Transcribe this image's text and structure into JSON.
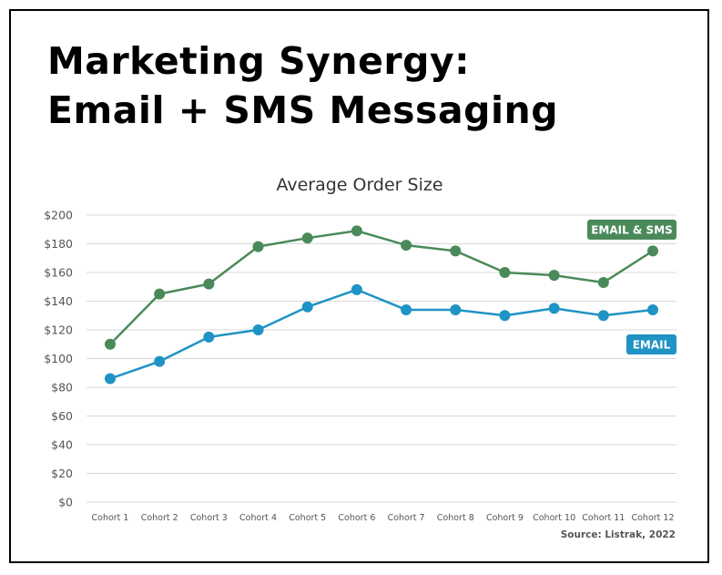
{
  "page": {
    "headline_line1": "Marketing Synergy:",
    "headline_line2": "Email + SMS Messaging",
    "source": "Source: Listrak, 2022"
  },
  "colors": {
    "email_sms": "#4a8a5a",
    "email": "#1f93c4",
    "grid": "#d9d9d9",
    "text": "#555555"
  },
  "chart_data": {
    "type": "line",
    "title": "Average Order Size",
    "xlabel": "",
    "ylabel": "",
    "categories": [
      "Cohort 1",
      "Cohort 2",
      "Cohort 3",
      "Cohort 4",
      "Cohort 5",
      "Cohort 6",
      "Cohort 7",
      "Cohort 8",
      "Cohort 9",
      "Cohort 10",
      "Cohort 11",
      "Cohort 12"
    ],
    "ylim": [
      0,
      200
    ],
    "yticks": [
      "$0",
      "$20",
      "$40",
      "$60",
      "$80",
      "$100",
      "$120",
      "$140",
      "$160",
      "$180",
      "$200"
    ],
    "grid": true,
    "legend": "labels at right end of lines",
    "series": [
      {
        "name": "EMAIL & SMS",
        "color": "#4a8a5a",
        "values": [
          110,
          145,
          152,
          178,
          184,
          189,
          179,
          175,
          160,
          158,
          153,
          175
        ]
      },
      {
        "name": "EMAIL",
        "color": "#1f93c4",
        "values": [
          86,
          98,
          115,
          120,
          136,
          148,
          134,
          134,
          130,
          135,
          130,
          134
        ]
      }
    ]
  }
}
